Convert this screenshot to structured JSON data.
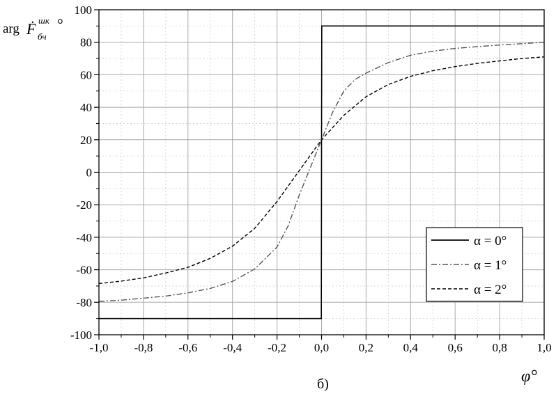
{
  "chart_data": {
    "type": "line",
    "xlim": [
      -1.0,
      1.0
    ],
    "ylim": [
      -100,
      100
    ],
    "x_ticks": [
      -1.0,
      -0.8,
      -0.6,
      -0.4,
      -0.2,
      0.0,
      0.2,
      0.4,
      0.6,
      0.8,
      1.0
    ],
    "x_tick_labels": [
      "-1,0",
      "-0,8",
      "-0,6",
      "-0,4",
      "-0,2",
      "0,0",
      "0,2",
      "0,4",
      "0,6",
      "0,8",
      "1,0"
    ],
    "y_ticks": [
      -100,
      -80,
      -60,
      -40,
      -20,
      0,
      20,
      40,
      60,
      80,
      100
    ],
    "y_tick_labels": [
      "-100",
      "-80",
      "-60",
      "-40",
      "-20",
      "0",
      "20",
      "40",
      "60",
      "80",
      "100"
    ],
    "xlabel": "φ°",
    "ylabel": {
      "prefix": "arg",
      "symbol": "Ḟ",
      "superscript": "шк",
      "subscript": "бч",
      "unit": "°"
    },
    "caption": "б)",
    "grid": true,
    "minor_grid": true,
    "legend_position": "bottom-right",
    "series": [
      {
        "name": "α = 0°",
        "style": "solid",
        "color": "#000000",
        "x": [
          -1.0,
          -0.001,
          0.0,
          0.001,
          1.0
        ],
        "y": [
          -90,
          -90,
          20,
          90,
          90
        ]
      },
      {
        "name": "α = 1°",
        "style": "dash-dot",
        "color": "#555555",
        "x": [
          -1.0,
          -0.9,
          -0.8,
          -0.7,
          -0.6,
          -0.5,
          -0.4,
          -0.3,
          -0.2,
          -0.15,
          -0.1,
          -0.05,
          0.0,
          0.05,
          0.1,
          0.15,
          0.2,
          0.3,
          0.4,
          0.5,
          0.6,
          0.7,
          0.8,
          0.9,
          1.0
        ],
        "y": [
          -79.5,
          -78.7,
          -77.5,
          -76.2,
          -74.2,
          -71.5,
          -67.2,
          -59.5,
          -46,
          -33,
          -14,
          3,
          20,
          37,
          50,
          57,
          61,
          67.5,
          72,
          74.5,
          76.2,
          77.3,
          78.3,
          79.1,
          80
        ]
      },
      {
        "name": "α = 2°",
        "style": "dashed",
        "color": "#000000",
        "x": [
          -1.0,
          -0.9,
          -0.8,
          -0.7,
          -0.6,
          -0.5,
          -0.4,
          -0.3,
          -0.2,
          -0.1,
          0.0,
          0.1,
          0.2,
          0.3,
          0.4,
          0.5,
          0.6,
          0.7,
          0.8,
          0.9,
          1.0
        ],
        "y": [
          -68.5,
          -67,
          -65,
          -62,
          -58.5,
          -53,
          -45.5,
          -34.5,
          -18,
          1,
          20,
          35,
          46.5,
          54,
          59,
          62.5,
          65,
          67,
          68.5,
          70,
          71
        ]
      }
    ]
  }
}
